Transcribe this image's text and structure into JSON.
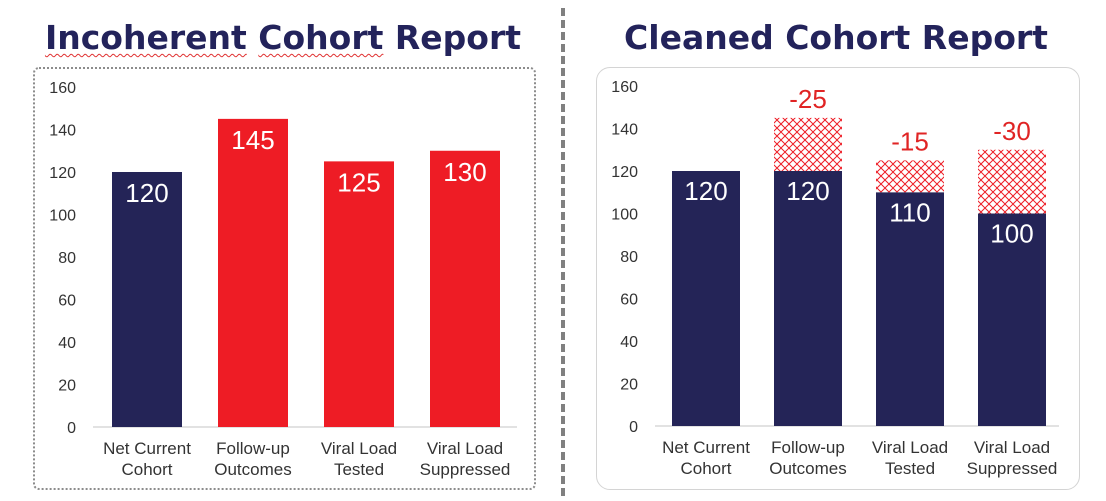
{
  "chart_data": [
    {
      "type": "bar",
      "title": "Incoherent Cohort Report",
      "title_words": [
        "Incoherent",
        "Cohort",
        "Report"
      ],
      "categories": [
        [
          "Net Current",
          "Cohort"
        ],
        [
          "Follow-up",
          "Outcomes"
        ],
        [
          "Viral Load",
          "Tested"
        ],
        [
          "Viral Load",
          "Suppressed"
        ]
      ],
      "values": [
        120,
        145,
        125,
        130
      ],
      "bar_colors": [
        "#242457",
        "#ee1c25",
        "#ee1c25",
        "#ee1c25"
      ],
      "ylim": [
        0,
        160
      ],
      "yticks": [
        0,
        20,
        40,
        60,
        80,
        100,
        120,
        140,
        160
      ],
      "grid": false,
      "legend": "none"
    },
    {
      "type": "bar",
      "title": "Cleaned Cohort Report",
      "categories": [
        [
          "Net Current",
          "Cohort"
        ],
        [
          "Follow-up",
          "Outcomes"
        ],
        [
          "Viral Load",
          "Tested"
        ],
        [
          "Viral Load",
          "Suppressed"
        ]
      ],
      "series": [
        {
          "values": [
            120,
            120,
            110,
            100
          ],
          "color": "#242457"
        },
        {
          "values": [
            0,
            25,
            15,
            30
          ],
          "color": "#ee1c25",
          "pattern": "crosshatch",
          "labels": [
            "",
            "-25",
            "-15",
            "-30"
          ]
        }
      ],
      "ylim": [
        0,
        160
      ],
      "yticks": [
        0,
        20,
        40,
        60,
        80,
        100,
        120,
        140,
        160
      ],
      "grid": false,
      "legend": "none"
    }
  ]
}
